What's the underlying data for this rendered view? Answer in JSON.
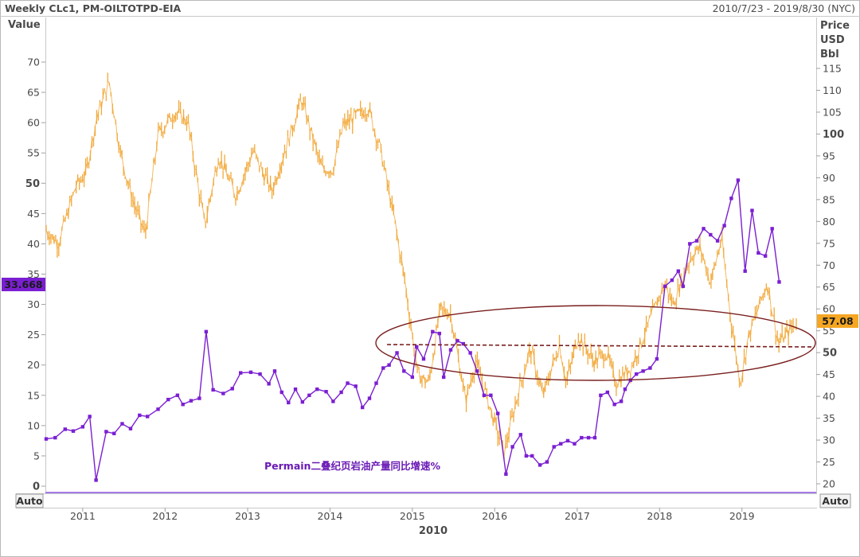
{
  "header": {
    "title": "Weekly CLc1, PM-OILTOTPD-EIA",
    "date_range": "2010/7/23 - 2019/8/30 (NYC)"
  },
  "axes": {
    "left_title": "Value",
    "right_title_lines": [
      "Price",
      "USD",
      "Bbl"
    ],
    "left_auto": "Auto",
    "right_auto": "Auto",
    "x_axis_year_label": "2010"
  },
  "badges": {
    "left_value": "33.668",
    "right_value": "57.08"
  },
  "colors": {
    "oil_price": "#F2A93B",
    "permian_growth": "#7B1FD2",
    "ellipse": "#7A1F1F",
    "dashed_line": "#7A1F1F",
    "left_badge_bg": "#7B1FD2",
    "right_badge_bg": "#F5A623"
  },
  "annotation": "Permain二叠纪页岩油产量同比增速%",
  "chart_data": [
    {
      "type": "line",
      "subtype": "weekly-candles",
      "series_name": "CLc1",
      "y_axis": "right",
      "ylim": [
        20,
        115
      ],
      "y_ticks": [
        20,
        25,
        30,
        35,
        40,
        45,
        50,
        55,
        60,
        65,
        70,
        75,
        80,
        85,
        90,
        95,
        100,
        105,
        110,
        115
      ],
      "x_ticks": [
        "2011",
        "2012",
        "2013",
        "2014",
        "2015",
        "2016",
        "2017",
        "2018",
        "2019"
      ],
      "x_range": [
        "2010-07-23",
        "2019-08-30"
      ],
      "points": [
        [
          "2010-07-23",
          78
        ],
        [
          "2010-09-15",
          75
        ],
        [
          "2010-12-01",
          88
        ],
        [
          "2011-01-15",
          91
        ],
        [
          "2011-03-05",
          104
        ],
        [
          "2011-04-28",
          112
        ],
        [
          "2011-06-20",
          95
        ],
        [
          "2011-08-10",
          85
        ],
        [
          "2011-10-05",
          77
        ],
        [
          "2011-12-01",
          100
        ],
        [
          "2012-02-15",
          105
        ],
        [
          "2012-04-10",
          103
        ],
        [
          "2012-06-25",
          79
        ],
        [
          "2012-08-25",
          95
        ],
        [
          "2012-11-10",
          86
        ],
        [
          "2013-01-25",
          96
        ],
        [
          "2013-04-18",
          87
        ],
        [
          "2013-06-01",
          94
        ],
        [
          "2013-08-28",
          108
        ],
        [
          "2013-11-25",
          92
        ],
        [
          "2014-01-15",
          92
        ],
        [
          "2014-03-01",
          102
        ],
        [
          "2014-06-20",
          106
        ],
        [
          "2014-08-15",
          96
        ],
        [
          "2014-10-15",
          80
        ],
        [
          "2014-11-30",
          66
        ],
        [
          "2015-01-25",
          45
        ],
        [
          "2015-03-15",
          43
        ],
        [
          "2015-05-05",
          60
        ],
        [
          "2015-06-20",
          59
        ],
        [
          "2015-08-25",
          39
        ],
        [
          "2015-10-10",
          48
        ],
        [
          "2015-12-20",
          36
        ],
        [
          "2016-02-11",
          27
        ],
        [
          "2016-04-15",
          41
        ],
        [
          "2016-06-08",
          51
        ],
        [
          "2016-08-01",
          40
        ],
        [
          "2016-10-15",
          52
        ],
        [
          "2016-11-14",
          43
        ],
        [
          "2017-01-06",
          54
        ],
        [
          "2017-03-15",
          48
        ],
        [
          "2017-05-10",
          50
        ],
        [
          "2017-06-21",
          43
        ],
        [
          "2017-09-01",
          47
        ],
        [
          "2017-11-01",
          55
        ],
        [
          "2018-01-25",
          66
        ],
        [
          "2018-03-01",
          61
        ],
        [
          "2018-05-20",
          72
        ],
        [
          "2018-07-01",
          74
        ],
        [
          "2018-08-15",
          66
        ],
        [
          "2018-10-03",
          76
        ],
        [
          "2018-11-15",
          57
        ],
        [
          "2018-12-24",
          43
        ],
        [
          "2019-02-01",
          54
        ],
        [
          "2019-04-23",
          66
        ],
        [
          "2019-06-12",
          52
        ],
        [
          "2019-08-30",
          57
        ]
      ],
      "last_value": 57.08
    },
    {
      "type": "line",
      "series_name": "PM-OILTOTPD-EIA",
      "y_axis": "left",
      "ylim": [
        0,
        75
      ],
      "y_ticks": [
        0,
        5,
        10,
        15,
        20,
        25,
        30,
        35,
        40,
        45,
        50,
        55,
        60,
        65,
        70
      ],
      "points": [
        [
          "2010-07-23",
          7.8
        ],
        [
          "2010-09-01",
          8.0
        ],
        [
          "2010-10-15",
          9.4
        ],
        [
          "2010-11-20",
          9.1
        ],
        [
          "2011-01-01",
          9.8
        ],
        [
          "2011-02-01",
          11.5
        ],
        [
          "2011-03-01",
          1.0
        ],
        [
          "2011-04-15",
          9.0
        ],
        [
          "2011-05-20",
          8.7
        ],
        [
          "2011-06-25",
          10.3
        ],
        [
          "2011-08-01",
          9.5
        ],
        [
          "2011-09-10",
          11.7
        ],
        [
          "2011-10-15",
          11.5
        ],
        [
          "2011-12-01",
          12.7
        ],
        [
          "2012-01-15",
          14.3
        ],
        [
          "2012-02-25",
          15.0
        ],
        [
          "2012-03-20",
          13.5
        ],
        [
          "2012-04-25",
          14.1
        ],
        [
          "2012-06-01",
          14.5
        ],
        [
          "2012-07-01",
          25.5
        ],
        [
          "2012-08-01",
          15.9
        ],
        [
          "2012-09-15",
          15.3
        ],
        [
          "2012-10-25",
          16.1
        ],
        [
          "2012-12-01",
          18.7
        ],
        [
          "2013-01-15",
          18.8
        ],
        [
          "2013-02-25",
          18.5
        ],
        [
          "2013-04-05",
          16.9
        ],
        [
          "2013-05-01",
          19.0
        ],
        [
          "2013-06-01",
          15.5
        ],
        [
          "2013-07-01",
          13.8
        ],
        [
          "2013-08-01",
          16.0
        ],
        [
          "2013-09-01",
          13.9
        ],
        [
          "2013-10-01",
          15.0
        ],
        [
          "2013-11-05",
          16.0
        ],
        [
          "2013-12-15",
          15.6
        ],
        [
          "2014-01-15",
          14.0
        ],
        [
          "2014-02-20",
          15.5
        ],
        [
          "2014-03-20",
          17.0
        ],
        [
          "2014-04-25",
          16.5
        ],
        [
          "2014-05-25",
          13.0
        ],
        [
          "2014-06-25",
          14.5
        ],
        [
          "2014-07-25",
          17.0
        ],
        [
          "2014-08-25",
          19.5
        ],
        [
          "2014-09-20",
          20.0
        ],
        [
          "2014-10-25",
          22.0
        ],
        [
          "2014-11-25",
          19.0
        ],
        [
          "2015-01-01",
          18.0
        ],
        [
          "2015-01-20",
          23.0
        ],
        [
          "2015-02-20",
          21.0
        ],
        [
          "2015-04-01",
          25.5
        ],
        [
          "2015-05-01",
          25.2
        ],
        [
          "2015-05-20",
          18.0
        ],
        [
          "2015-06-20",
          22.5
        ],
        [
          "2015-07-20",
          24.0
        ],
        [
          "2015-08-15",
          23.5
        ],
        [
          "2015-09-15",
          22.0
        ],
        [
          "2015-10-15",
          19.0
        ],
        [
          "2015-11-15",
          15.0
        ],
        [
          "2015-12-15",
          15.0
        ],
        [
          "2016-01-15",
          12.0
        ],
        [
          "2016-02-20",
          2.0
        ],
        [
          "2016-03-20",
          6.5
        ],
        [
          "2016-04-25",
          8.5
        ],
        [
          "2016-05-20",
          5.0
        ],
        [
          "2016-06-15",
          5.0
        ],
        [
          "2016-07-20",
          3.5
        ],
        [
          "2016-08-20",
          4.0
        ],
        [
          "2016-09-20",
          6.5
        ],
        [
          "2016-10-20",
          7.0
        ],
        [
          "2016-11-20",
          7.5
        ],
        [
          "2016-12-20",
          7.0
        ],
        [
          "2017-01-20",
          8.0
        ],
        [
          "2017-02-20",
          8.0
        ],
        [
          "2017-03-20",
          8.0
        ],
        [
          "2017-04-15",
          15.0
        ],
        [
          "2017-05-15",
          15.5
        ],
        [
          "2017-06-15",
          13.5
        ],
        [
          "2017-07-15",
          14.0
        ],
        [
          "2017-08-01",
          16.0
        ],
        [
          "2017-08-25",
          17.5
        ],
        [
          "2017-09-20",
          18.5
        ],
        [
          "2017-10-20",
          19.0
        ],
        [
          "2017-11-20",
          19.5
        ],
        [
          "2017-12-20",
          21.0
        ],
        [
          "2018-01-25",
          33.0
        ],
        [
          "2018-02-25",
          34.0
        ],
        [
          "2018-03-25",
          35.5
        ],
        [
          "2018-04-15",
          33.0
        ],
        [
          "2018-05-15",
          40.0
        ],
        [
          "2018-06-15",
          40.5
        ],
        [
          "2018-07-15",
          42.5
        ],
        [
          "2018-08-15",
          41.5
        ],
        [
          "2018-09-15",
          40.5
        ],
        [
          "2018-10-15",
          43.0
        ],
        [
          "2018-11-15",
          47.5
        ],
        [
          "2018-12-15",
          50.5
        ],
        [
          "2019-01-15",
          35.5
        ],
        [
          "2019-02-15",
          45.5
        ],
        [
          "2019-03-15",
          38.5
        ],
        [
          "2019-04-15",
          38.0
        ],
        [
          "2019-05-15",
          42.5
        ],
        [
          "2019-06-15",
          33.7
        ]
      ],
      "last_value": 33.668
    }
  ]
}
